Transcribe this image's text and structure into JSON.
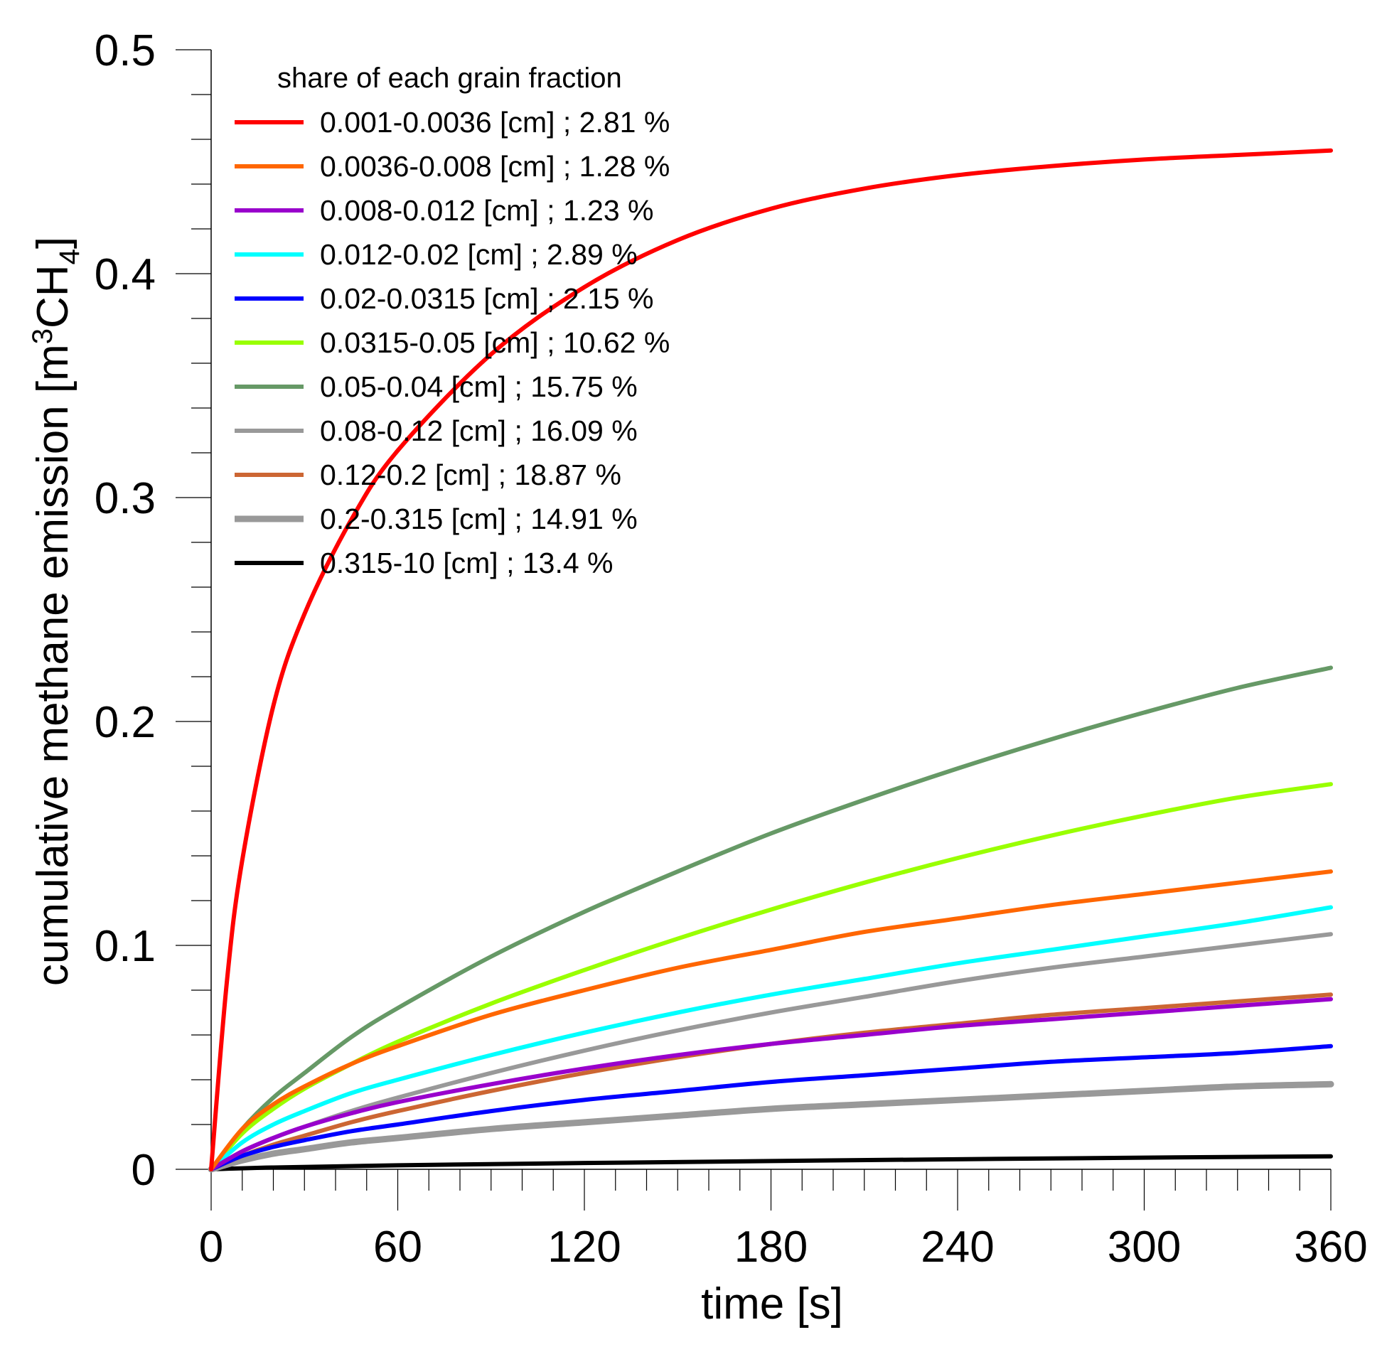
{
  "chart_data": {
    "type": "line",
    "title": "",
    "xlabel": "time [s]",
    "ylabel": {
      "main": "cumulative methane emission [m",
      "superscript": "3",
      "middle": "CH",
      "subscript": "4",
      "tail": "]"
    },
    "xlim": [
      0,
      360
    ],
    "ylim": [
      0,
      0.5
    ],
    "xticks": [
      0,
      60,
      120,
      180,
      240,
      300,
      360
    ],
    "xtick_labels": [
      "0",
      "60",
      "120",
      "180",
      "240",
      "300",
      "360"
    ],
    "yticks": [
      0,
      0.1,
      0.2,
      0.3,
      0.4,
      0.5
    ],
    "ytick_labels": [
      "0",
      "0.1",
      "0.2",
      "0.3",
      "0.4",
      "0.5"
    ],
    "grid": false,
    "legend": {
      "title": "share of each grain fraction",
      "placement": "top-left"
    },
    "series": [
      {
        "name": "0.001-0.0036 [cm] ; 2.81 %",
        "color": "#ff0000",
        "x": [
          0,
          5,
          10,
          20,
          30,
          45,
          60,
          90,
          120,
          150,
          180,
          210,
          240,
          270,
          300,
          330,
          360
        ],
        "y": [
          0,
          0.083,
          0.138,
          0.207,
          0.248,
          0.29,
          0.321,
          0.364,
          0.394,
          0.415,
          0.429,
          0.438,
          0.444,
          0.448,
          0.451,
          0.453,
          0.455
        ]
      },
      {
        "name": "0.0036-0.008 [cm] ; 1.28 %",
        "color": "#ff6600",
        "x": [
          0,
          10,
          20,
          30,
          45,
          60,
          90,
          120,
          150,
          180,
          210,
          240,
          270,
          300,
          330,
          360
        ],
        "y": [
          0,
          0.018,
          0.029,
          0.037,
          0.047,
          0.055,
          0.069,
          0.08,
          0.09,
          0.098,
          0.106,
          0.112,
          0.118,
          0.123,
          0.128,
          0.133
        ]
      },
      {
        "name": "0.008-0.012 [cm] ; 1.23 %",
        "color": "#9900cc",
        "x": [
          0,
          10,
          20,
          30,
          45,
          60,
          90,
          120,
          150,
          180,
          210,
          240,
          270,
          300,
          330,
          360
        ],
        "y": [
          0,
          0.008,
          0.014,
          0.019,
          0.025,
          0.03,
          0.038,
          0.045,
          0.051,
          0.056,
          0.06,
          0.064,
          0.067,
          0.07,
          0.073,
          0.076
        ]
      },
      {
        "name": "0.012-0.02 [cm] ; 2.89 %",
        "color": "#00ffff",
        "x": [
          0,
          10,
          20,
          30,
          45,
          60,
          90,
          120,
          150,
          180,
          210,
          240,
          270,
          300,
          330,
          360
        ],
        "y": [
          0,
          0.012,
          0.02,
          0.026,
          0.034,
          0.04,
          0.051,
          0.061,
          0.07,
          0.078,
          0.085,
          0.092,
          0.098,
          0.104,
          0.11,
          0.117
        ]
      },
      {
        "name": "0.02-0.0315 [cm] ; 2.15 %",
        "color": "#0000ff",
        "x": [
          0,
          10,
          20,
          30,
          45,
          60,
          90,
          120,
          150,
          180,
          210,
          240,
          270,
          300,
          330,
          360
        ],
        "y": [
          0,
          0.006,
          0.01,
          0.013,
          0.017,
          0.02,
          0.026,
          0.031,
          0.035,
          0.039,
          0.042,
          0.045,
          0.048,
          0.05,
          0.052,
          0.055
        ]
      },
      {
        "name": "0.0315-0.05 [cm] ; 10.62 %",
        "color": "#99ff00",
        "x": [
          0,
          10,
          20,
          30,
          45,
          60,
          90,
          120,
          150,
          180,
          210,
          240,
          270,
          300,
          330,
          360
        ],
        "y": [
          0,
          0.016,
          0.027,
          0.036,
          0.047,
          0.057,
          0.074,
          0.089,
          0.103,
          0.116,
          0.128,
          0.139,
          0.149,
          0.158,
          0.166,
          0.172
        ]
      },
      {
        "name": "0.05-0.04 [cm] ; 15.75 %",
        "color": "#669966",
        "x": [
          0,
          10,
          20,
          30,
          45,
          60,
          90,
          120,
          150,
          180,
          210,
          240,
          270,
          300,
          330,
          360
        ],
        "y": [
          0,
          0.018,
          0.032,
          0.043,
          0.059,
          0.072,
          0.095,
          0.115,
          0.133,
          0.15,
          0.165,
          0.179,
          0.192,
          0.204,
          0.215,
          0.224
        ]
      },
      {
        "name": "0.08-0.12 [cm] ; 16.09 %",
        "color": "#999999",
        "x": [
          0,
          10,
          20,
          30,
          45,
          60,
          90,
          120,
          150,
          180,
          210,
          240,
          270,
          300,
          330,
          360
        ],
        "y": [
          0,
          0.008,
          0.014,
          0.019,
          0.026,
          0.032,
          0.043,
          0.053,
          0.062,
          0.07,
          0.077,
          0.084,
          0.09,
          0.095,
          0.1,
          0.105
        ]
      },
      {
        "name": "0.12-0.2 [cm] ; 18.87 %",
        "color": "#cc6633",
        "x": [
          0,
          10,
          20,
          30,
          45,
          60,
          90,
          120,
          150,
          180,
          210,
          240,
          270,
          300,
          330,
          360
        ],
        "y": [
          0,
          0.006,
          0.011,
          0.015,
          0.021,
          0.026,
          0.035,
          0.043,
          0.05,
          0.056,
          0.061,
          0.065,
          0.069,
          0.072,
          0.075,
          0.078
        ]
      },
      {
        "name": "0.2-0.315 [cm] ; 14.91 %",
        "color": "#999999",
        "x": [
          0,
          10,
          20,
          30,
          45,
          60,
          90,
          120,
          150,
          180,
          210,
          240,
          270,
          300,
          330,
          360
        ],
        "y": [
          0,
          0.004,
          0.007,
          0.009,
          0.012,
          0.014,
          0.018,
          0.021,
          0.024,
          0.027,
          0.029,
          0.031,
          0.033,
          0.035,
          0.037,
          0.038
        ]
      },
      {
        "name": "0.315-10 [cm] ; 13.4 %",
        "color": "#000000",
        "x": [
          0,
          20,
          60,
          120,
          180,
          240,
          300,
          360
        ],
        "y": [
          0,
          0.0008,
          0.0018,
          0.0028,
          0.0037,
          0.0045,
          0.0052,
          0.0058
        ]
      }
    ]
  }
}
